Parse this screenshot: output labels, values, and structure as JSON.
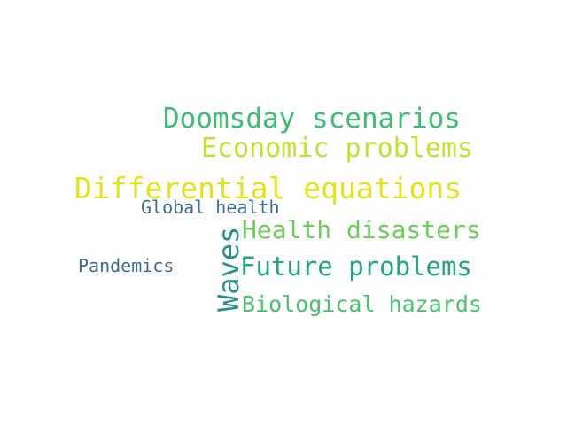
{
  "words": [
    {
      "text": "Doomsday scenarios",
      "color": "#3dbc74"
    },
    {
      "text": "Economic problems",
      "color": "#c5df2e"
    },
    {
      "text": "Differential equations",
      "color": "#e2e418"
    },
    {
      "text": "Global health",
      "color": "#3b6f8e"
    },
    {
      "text": "Health disasters",
      "color": "#6ccd5a"
    },
    {
      "text": "Future problems",
      "color": "#20a486"
    },
    {
      "text": "Pandemics",
      "color": "#3e6b8e"
    },
    {
      "text": "Biological hazards",
      "color": "#4ac16d"
    },
    {
      "text": "Waves",
      "color": "#2a8f8c"
    }
  ]
}
